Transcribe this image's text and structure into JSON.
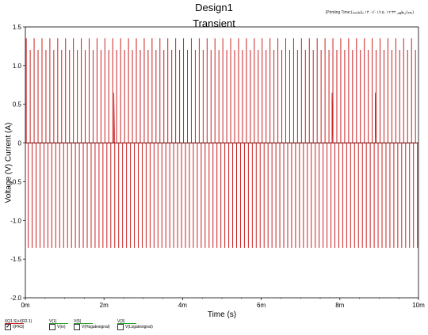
{
  "header": {
    "title": "Design1",
    "subtitle": "Transient",
    "timestamp": "(Printing Time:(بعدازظهر ۱۲:۳۲ ،۱۴۰۱/۰۱/۱۵ یکشنبه)"
  },
  "chart_data": {
    "type": "line",
    "xlabel": "Time (s)",
    "ylabel": "Voltage (V) Current (A)",
    "xlim": [
      0,
      10
    ],
    "ylim": [
      -2.0,
      1.5
    ],
    "x_unit": "m",
    "x_ticks": [
      "0m",
      "2m",
      "4m",
      "6m",
      "8m",
      "10m"
    ],
    "x_tick_values": [
      0,
      2,
      4,
      6,
      8,
      10
    ],
    "y_ticks": [
      "1.5",
      "1.0",
      "0.5",
      "0",
      "-0.5",
      "-1.0",
      "-1.5",
      "-2.0"
    ],
    "y_tick_values": [
      1.5,
      1.0,
      0.5,
      0,
      -0.5,
      -1.0,
      -1.5,
      -2.0
    ],
    "grid": false,
    "series": [
      {
        "name": "I(Q1.S)+I(R2.1)",
        "color": "#cc2222",
        "pulse_count": 100,
        "high_peak": 1.35,
        "high_level": 1.2,
        "low_level": -1.35,
        "baseline": 0.0,
        "minor_peaks": [
          {
            "x": 2.25,
            "y": 0.65
          },
          {
            "x": 7.8,
            "y": 0.65
          },
          {
            "x": 8.9,
            "y": 0.65
          }
        ]
      }
    ],
    "legend": [
      {
        "top": "I(Q1.S)+I(R2.1)",
        "bottom": "I(PR3)",
        "checked": true,
        "color": "#cc2222"
      },
      {
        "top": "V(1)",
        "bottom": "V(in)",
        "checked": false,
        "color": "#2aa02a"
      },
      {
        "top": "V(5)",
        "bottom": "V(Hsgatesignal)",
        "checked": false,
        "color": "#2aa02a"
      },
      {
        "top": "V(3)",
        "bottom": "V(Lsgatesignal)",
        "checked": false,
        "color": "#2aa02a"
      }
    ]
  }
}
